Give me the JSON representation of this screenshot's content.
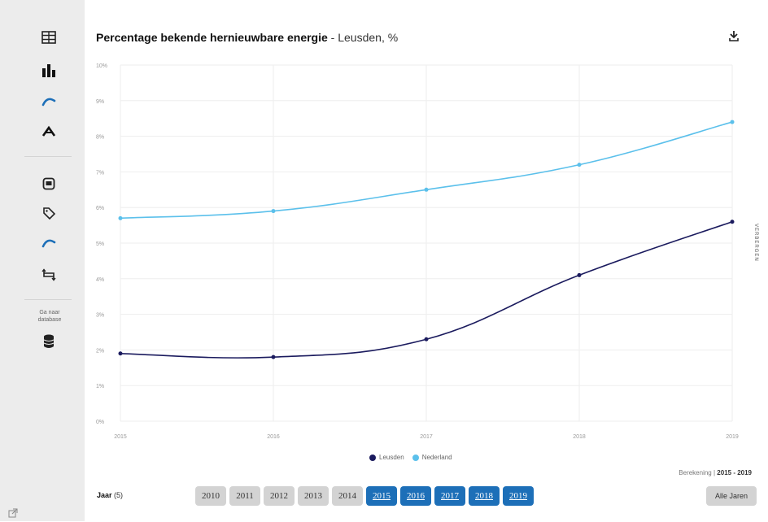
{
  "sidebar": {
    "icons": [
      {
        "name": "table-icon"
      },
      {
        "name": "bar-chart-icon"
      },
      {
        "name": "line-chart-icon"
      },
      {
        "name": "area-chart-icon"
      },
      {
        "name": "embed-icon"
      },
      {
        "name": "tag-icon"
      },
      {
        "name": "curve-icon"
      },
      {
        "name": "swap-icon"
      }
    ],
    "database_label": "Ga naar database",
    "database_icon": "database-icon"
  },
  "header": {
    "title": "Percentage bekende hernieuwbare energie",
    "subtitle": " - Leusden, %",
    "download_icon": "download-icon"
  },
  "colors": {
    "leusden": "#1b1b5e",
    "nederland": "#5bc0eb",
    "active_year": "#1d6fb8",
    "sidebar_bg": "#ececec"
  },
  "chart_data": {
    "type": "line",
    "title": "Percentage bekende hernieuwbare energie - Leusden, %",
    "x": [
      "2015",
      "2016",
      "2017",
      "2018",
      "2019"
    ],
    "series": [
      {
        "name": "Leusden",
        "values": [
          1.9,
          1.8,
          2.3,
          4.1,
          5.6
        ]
      },
      {
        "name": "Nederland",
        "values": [
          5.7,
          5.9,
          6.5,
          7.2,
          8.4
        ]
      }
    ],
    "y_ticks": [
      "0%",
      "1%",
      "2%",
      "3%",
      "4%",
      "5%",
      "6%",
      "7%",
      "8%",
      "9%",
      "10%"
    ],
    "ylim": [
      0,
      10
    ],
    "grid": true,
    "legend_placement": "bottom-center"
  },
  "range": {
    "label": "Berekening",
    "value": "2015 - 2019"
  },
  "years": {
    "label": "Jaar",
    "count": "(5)",
    "options": [
      {
        "label": "2010",
        "active": false
      },
      {
        "label": "2011",
        "active": false
      },
      {
        "label": "2012",
        "active": false
      },
      {
        "label": "2013",
        "active": false
      },
      {
        "label": "2014",
        "active": false
      },
      {
        "label": "2015",
        "active": true
      },
      {
        "label": "2016",
        "active": true
      },
      {
        "label": "2017",
        "active": true
      },
      {
        "label": "2018",
        "active": true
      },
      {
        "label": "2019",
        "active": true
      }
    ],
    "all_label": "Alle Jaren"
  },
  "side_toggle": "VERBERGEN"
}
